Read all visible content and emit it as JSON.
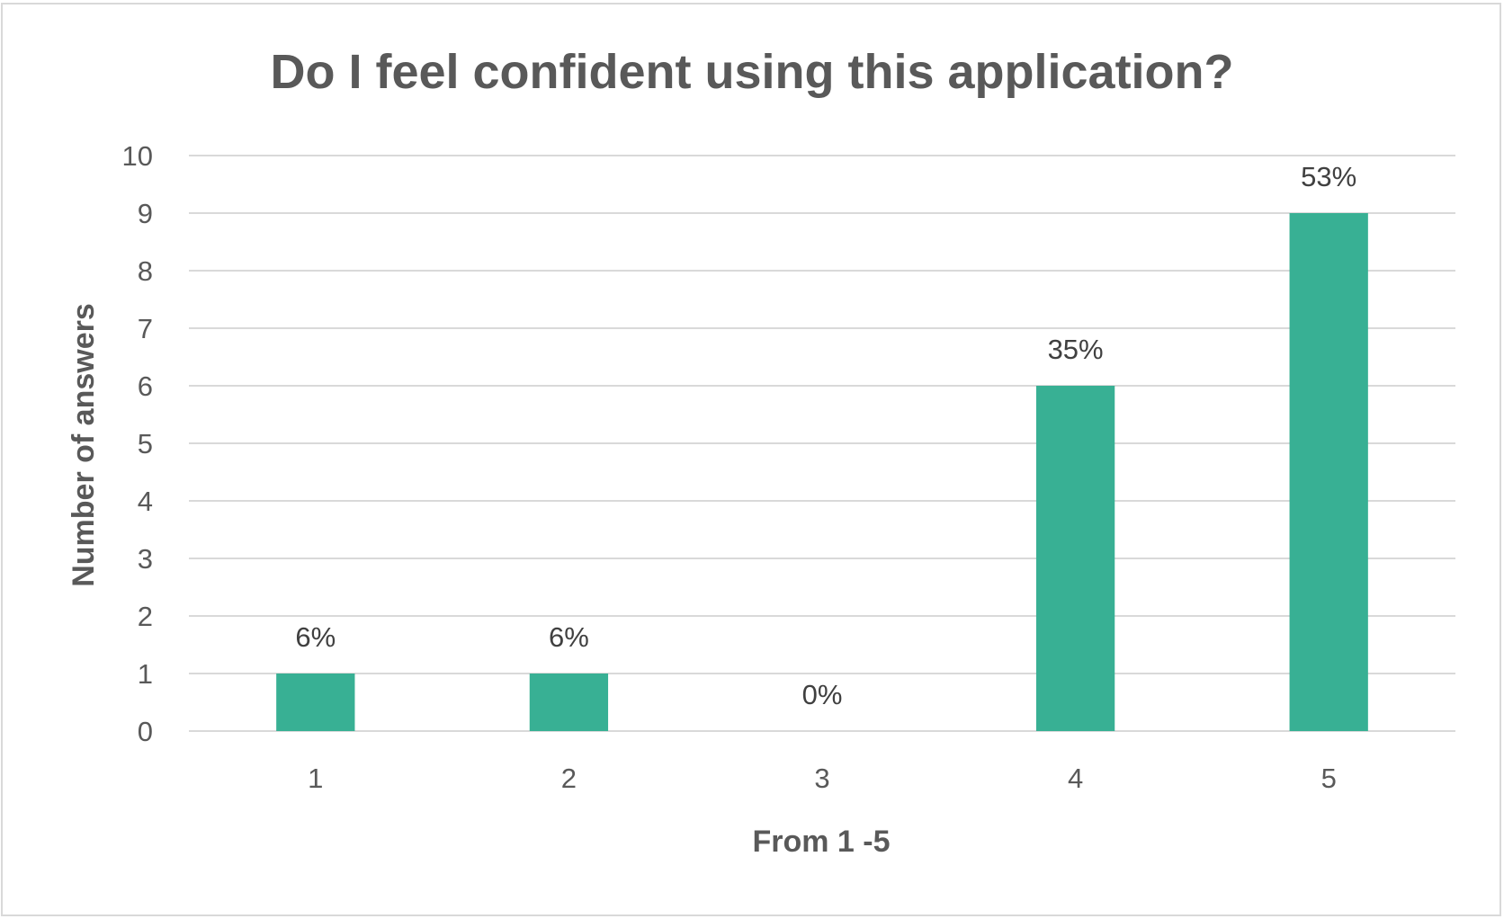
{
  "chart_data": {
    "type": "bar",
    "title": "Do I feel confident using this application?",
    "xlabel": "From 1 -5",
    "ylabel": "Number of answers",
    "categories": [
      "1",
      "2",
      "3",
      "4",
      "5"
    ],
    "values": [
      1,
      1,
      0,
      6,
      9
    ],
    "data_labels": [
      "6%",
      "6%",
      "0%",
      "35%",
      "53%"
    ],
    "ylim": [
      0,
      10
    ],
    "yticks": [
      "0",
      "1",
      "2",
      "3",
      "4",
      "5",
      "6",
      "7",
      "8",
      "9",
      "10"
    ],
    "grid": true,
    "legend": "none",
    "colors": {
      "bar": "#38b094",
      "grid": "#d9d9d9",
      "text": "#595959",
      "border": "#d9d9d9"
    }
  }
}
